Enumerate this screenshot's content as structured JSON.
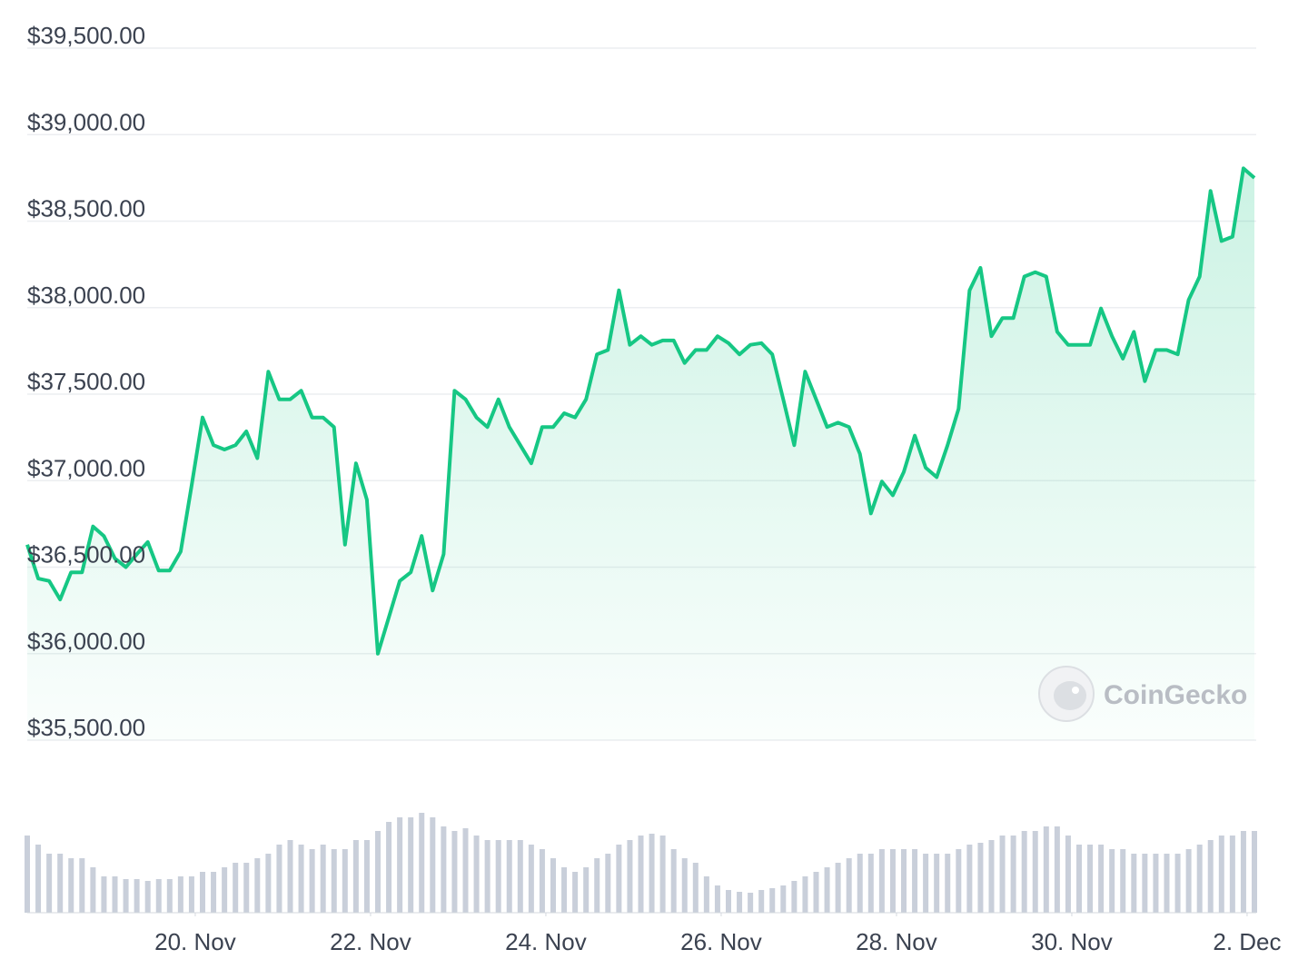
{
  "chart_data": {
    "type": "line",
    "color": "#16c784",
    "watermark": "CoinGecko",
    "grid": true,
    "x": [
      0,
      3,
      6,
      9,
      12,
      15,
      18,
      21,
      24,
      27,
      30,
      33,
      36,
      39,
      42,
      45,
      48,
      51,
      54,
      57,
      60,
      63,
      66,
      69,
      72,
      75,
      78,
      81,
      84,
      87,
      90,
      93,
      96,
      99,
      102,
      105,
      108,
      111,
      114,
      117,
      120,
      123,
      126,
      129,
      132,
      135,
      138,
      141,
      144,
      147,
      150,
      153,
      156,
      159,
      162,
      165,
      168,
      171,
      174,
      177,
      180,
      183,
      186,
      189,
      192,
      195,
      198,
      201,
      204,
      207,
      210,
      213,
      216,
      219,
      222,
      225,
      228,
      231,
      234,
      237,
      240,
      243,
      246,
      249,
      252,
      255,
      258,
      261,
      264,
      267,
      270,
      273,
      276,
      279,
      282,
      285,
      288,
      291,
      294,
      297,
      300,
      303,
      306,
      309,
      312,
      315,
      318,
      321,
      324,
      327,
      330,
      333,
      336
    ],
    "values": [
      36630,
      36434,
      36420,
      36313,
      36470,
      36470,
      36735,
      36680,
      36550,
      36500,
      36575,
      36645,
      36480,
      36480,
      36590,
      36970,
      37365,
      37205,
      37180,
      37205,
      37285,
      37130,
      37630,
      37470,
      37470,
      37520,
      37365,
      37365,
      37310,
      36630,
      37100,
      36890,
      36000,
      36210,
      36420,
      36470,
      36680,
      36365,
      36575,
      37520,
      37470,
      37365,
      37310,
      37470,
      37310,
      37205,
      37100,
      37310,
      37310,
      37390,
      37365,
      37470,
      37730,
      37755,
      38100,
      37785,
      37835,
      37785,
      37810,
      37810,
      37680,
      37755,
      37755,
      37835,
      37795,
      37730,
      37785,
      37795,
      37730,
      37470,
      37205,
      37630,
      37470,
      37310,
      37335,
      37310,
      37155,
      36810,
      36995,
      36915,
      37050,
      37260,
      37075,
      37020,
      37205,
      37415,
      38100,
      38230,
      37835,
      37940,
      37940,
      38180,
      38205,
      38180,
      37860,
      37785,
      37785,
      37785,
      37995,
      37835,
      37705,
      37860,
      37575,
      37755,
      37755,
      37730,
      38045,
      38180,
      38675,
      38385,
      38410,
      38805,
      38750
    ],
    "xlim": [
      0,
      336.5
    ],
    "ylim": [
      35500,
      39500
    ],
    "yticks": [
      {
        "value": 35500,
        "label": "$35,500.00"
      },
      {
        "value": 36000,
        "label": "$36,000.00"
      },
      {
        "value": 36500,
        "label": "$36,500.00"
      },
      {
        "value": 37000,
        "label": "$37,000.00"
      },
      {
        "value": 37500,
        "label": "$37,500.00"
      },
      {
        "value": 38000,
        "label": "$38,000.00"
      },
      {
        "value": 38500,
        "label": "$38,500.00"
      },
      {
        "value": 39000,
        "label": "$39,000.00"
      },
      {
        "value": 39500,
        "label": "$39,500.00"
      }
    ],
    "xticks": [
      {
        "value": 46,
        "label": "20. Nov"
      },
      {
        "value": 94,
        "label": "22. Nov"
      },
      {
        "value": 142,
        "label": "24. Nov"
      },
      {
        "value": 190,
        "label": "26. Nov"
      },
      {
        "value": 238,
        "label": "28. Nov"
      },
      {
        "value": 286,
        "label": "30. Nov"
      },
      {
        "value": 334,
        "label": "2. Dec"
      }
    ],
    "volume": {
      "color": "#c9cfda",
      "ylim": [
        0,
        120
      ],
      "values": [
        85,
        75,
        65,
        65,
        60,
        60,
        50,
        40,
        40,
        37,
        37,
        35,
        37,
        37,
        40,
        40,
        45,
        45,
        50,
        55,
        55,
        60,
        65,
        75,
        80,
        75,
        70,
        75,
        70,
        70,
        80,
        80,
        90,
        100,
        105,
        105,
        110,
        105,
        95,
        90,
        93,
        85,
        80,
        80,
        80,
        80,
        75,
        70,
        60,
        50,
        45,
        50,
        60,
        65,
        75,
        80,
        85,
        87,
        85,
        70,
        60,
        55,
        40,
        30,
        25,
        23,
        22,
        25,
        27,
        30,
        35,
        40,
        45,
        50,
        55,
        60,
        65,
        65,
        70,
        70,
        70,
        70,
        65,
        65,
        65,
        70,
        75,
        77,
        80,
        85,
        85,
        90,
        90,
        95,
        95,
        85,
        75,
        75,
        75,
        70,
        70,
        65,
        65,
        65,
        65,
        65,
        70,
        75,
        80,
        85,
        85,
        90,
        90
      ]
    }
  }
}
